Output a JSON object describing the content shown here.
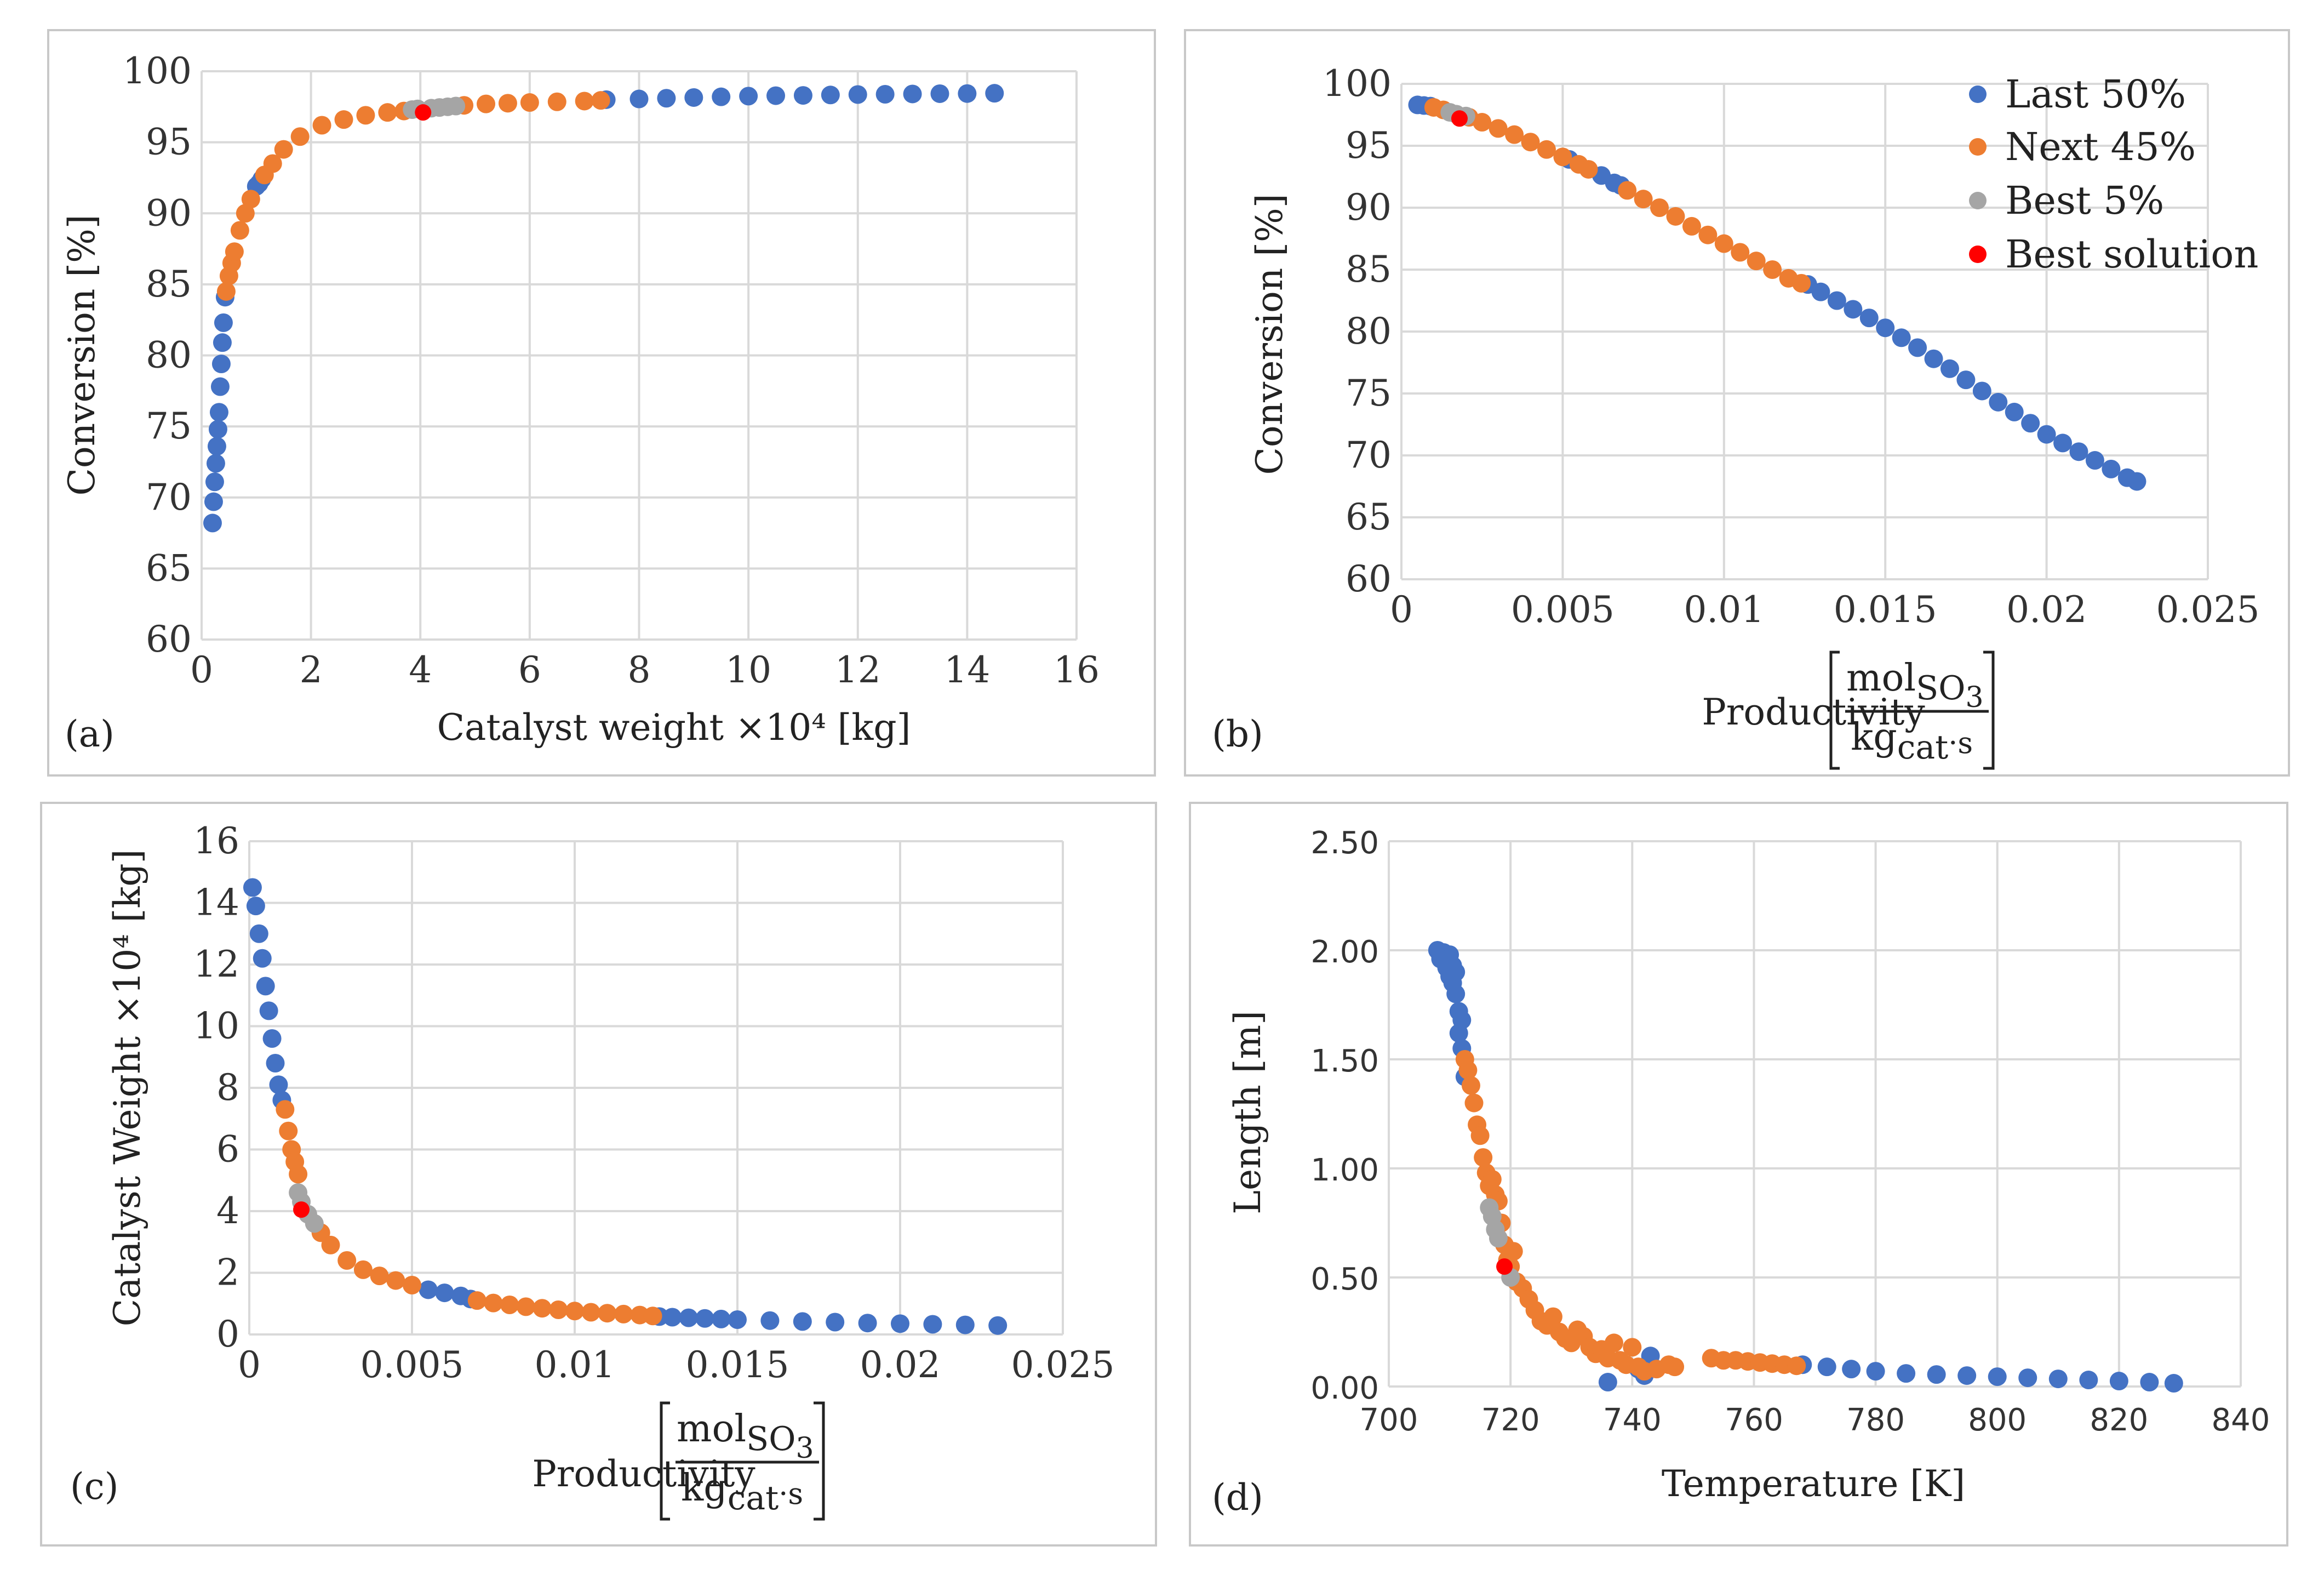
{
  "colors": {
    "last50": "#4472C4",
    "next45": "#ED7D31",
    "best5": "#A5A5A5",
    "best_solution": "#FF0000",
    "grid": "#D9D9D9"
  },
  "legend": {
    "last50": "Last 50%",
    "next45": "Next 45%",
    "best5": "Best 5%",
    "best_solution": "Best solution"
  },
  "productivity_unit": {
    "num_main": "mol",
    "num_sub": "SO",
    "num_subsub": "3",
    "den_main": "kg",
    "den_sub": "cat",
    "den_tail": "·s"
  },
  "chart_data": [
    {
      "id": "a",
      "type": "scatter",
      "panel_label": "(a)",
      "title": "",
      "xlabel": "Catalyst weight ×10⁴ [kg]",
      "ylabel": "Conversion [%]",
      "xlim": [
        0,
        16
      ],
      "ylim": [
        60,
        100
      ],
      "xticks": [
        "0",
        "2",
        "4",
        "6",
        "8",
        "10",
        "12",
        "14",
        "16"
      ],
      "yticks": [
        "60",
        "65",
        "70",
        "75",
        "80",
        "85",
        "90",
        "95",
        "100"
      ],
      "grid": true,
      "series": [
        {
          "name": "Last 50%",
          "key": "last50",
          "x": [
            0.2,
            0.22,
            0.24,
            0.26,
            0.28,
            0.3,
            0.32,
            0.34,
            0.36,
            0.38,
            0.4,
            0.43,
            1.0,
            1.05,
            1.1,
            7.4,
            8.0,
            8.5,
            9.0,
            9.5,
            10.0,
            10.5,
            11.0,
            11.5,
            12.0,
            12.5,
            13.0,
            13.5,
            14.0,
            14.5
          ],
          "y": [
            68.2,
            69.7,
            71.1,
            72.4,
            73.6,
            74.8,
            76.0,
            77.8,
            79.4,
            80.9,
            82.3,
            84.1,
            91.9,
            92.1,
            92.4,
            98.0,
            98.05,
            98.1,
            98.15,
            98.2,
            98.25,
            98.28,
            98.3,
            98.33,
            98.36,
            98.38,
            98.4,
            98.42,
            98.43,
            98.45
          ]
        },
        {
          "name": "Next 45%",
          "key": "next45",
          "x": [
            0.45,
            0.5,
            0.55,
            0.6,
            0.7,
            0.8,
            0.9,
            1.15,
            1.3,
            1.5,
            1.8,
            2.2,
            2.6,
            3.0,
            3.4,
            3.7,
            4.8,
            5.2,
            5.6,
            6.0,
            6.5,
            7.0,
            7.3
          ],
          "y": [
            84.5,
            85.6,
            86.5,
            87.3,
            88.8,
            90.0,
            91.0,
            92.7,
            93.5,
            94.5,
            95.4,
            96.2,
            96.6,
            96.9,
            97.1,
            97.2,
            97.6,
            97.7,
            97.75,
            97.8,
            97.85,
            97.9,
            97.95
          ]
        },
        {
          "name": "Best 5%",
          "key": "best5",
          "x": [
            3.85,
            3.95,
            4.2,
            4.35,
            4.5,
            4.65
          ],
          "y": [
            97.3,
            97.35,
            97.4,
            97.45,
            97.5,
            97.55
          ]
        },
        {
          "name": "Best solution",
          "key": "best_solution",
          "x": [
            4.05
          ],
          "y": [
            97.1
          ]
        }
      ]
    },
    {
      "id": "b",
      "type": "scatter",
      "panel_label": "(b)",
      "title": "",
      "xlabel": "Productivity",
      "ylabel": "Conversion [%]",
      "xlim": [
        0,
        0.025
      ],
      "ylim": [
        60,
        100
      ],
      "xticks": [
        "0",
        "0.005",
        "0.01",
        "0.015",
        "0.02",
        "0.025"
      ],
      "yticks": [
        "60",
        "65",
        "70",
        "75",
        "80",
        "85",
        "90",
        "95",
        "100"
      ],
      "grid": true,
      "legend_position": "top-right",
      "series": [
        {
          "name": "Last 50%",
          "key": "last50",
          "x": [
            0.0005,
            0.0007,
            0.0009,
            0.0052,
            0.0062,
            0.0066,
            0.0068,
            0.0126,
            0.013,
            0.0135,
            0.014,
            0.0145,
            0.015,
            0.0155,
            0.016,
            0.0165,
            0.017,
            0.0175,
            0.018,
            0.0185,
            0.019,
            0.0195,
            0.02,
            0.0205,
            0.021,
            0.0215,
            0.022,
            0.0225,
            0.0228
          ],
          "y": [
            98.3,
            98.25,
            98.2,
            93.9,
            92.6,
            92.0,
            91.8,
            83.8,
            83.2,
            82.5,
            81.8,
            81.1,
            80.3,
            79.5,
            78.7,
            77.8,
            77.0,
            76.1,
            75.2,
            74.3,
            73.5,
            72.6,
            71.7,
            71.0,
            70.3,
            69.6,
            68.9,
            68.2,
            67.9
          ]
        },
        {
          "name": "Next 45%",
          "key": "next45",
          "x": [
            0.001,
            0.0013,
            0.0021,
            0.0025,
            0.003,
            0.0035,
            0.004,
            0.0045,
            0.005,
            0.0055,
            0.0058,
            0.007,
            0.0075,
            0.008,
            0.0085,
            0.009,
            0.0095,
            0.01,
            0.0105,
            0.011,
            0.0115,
            0.012,
            0.0124
          ],
          "y": [
            98.1,
            97.9,
            97.3,
            96.9,
            96.4,
            95.9,
            95.3,
            94.7,
            94.1,
            93.5,
            93.1,
            91.4,
            90.7,
            90.0,
            89.3,
            88.5,
            87.8,
            87.1,
            86.4,
            85.7,
            85.0,
            84.3,
            83.9
          ]
        },
        {
          "name": "Best 5%",
          "key": "best5",
          "x": [
            0.0015,
            0.0017,
            0.002
          ],
          "y": [
            97.7,
            97.55,
            97.4
          ]
        },
        {
          "name": "Best solution",
          "key": "best_solution",
          "x": [
            0.0018
          ],
          "y": [
            97.2
          ]
        }
      ]
    },
    {
      "id": "c",
      "type": "scatter",
      "panel_label": "(c)",
      "title": "",
      "xlabel": "Productivity",
      "ylabel": "Catalyst Weight ×10⁴ [kg]",
      "xlim": [
        0,
        0.025
      ],
      "ylim": [
        0,
        16
      ],
      "xticks": [
        "0",
        "0.005",
        "0.01",
        "0.015",
        "0.02",
        "0.025"
      ],
      "yticks": [
        "0",
        "2",
        "4",
        "6",
        "8",
        "10",
        "12",
        "14",
        "16"
      ],
      "grid": true,
      "series": [
        {
          "name": "Last 50%",
          "key": "last50",
          "x": [
            0.0001,
            0.0002,
            0.0003,
            0.0004,
            0.0005,
            0.0006,
            0.0007,
            0.0008,
            0.0009,
            0.001,
            0.0055,
            0.006,
            0.0065,
            0.0068,
            0.0126,
            0.013,
            0.0135,
            0.014,
            0.0145,
            0.015,
            0.016,
            0.017,
            0.018,
            0.019,
            0.02,
            0.021,
            0.022,
            0.023
          ],
          "y": [
            14.5,
            13.9,
            13.0,
            12.2,
            11.3,
            10.5,
            9.6,
            8.8,
            8.1,
            7.6,
            1.45,
            1.35,
            1.25,
            1.15,
            0.58,
            0.56,
            0.54,
            0.52,
            0.5,
            0.48,
            0.45,
            0.42,
            0.4,
            0.37,
            0.35,
            0.33,
            0.31,
            0.29
          ]
        },
        {
          "name": "Next 45%",
          "key": "next45",
          "x": [
            0.0011,
            0.0012,
            0.0013,
            0.0014,
            0.0015,
            0.0022,
            0.0025,
            0.003,
            0.0035,
            0.004,
            0.0045,
            0.005,
            0.007,
            0.0075,
            0.008,
            0.0085,
            0.009,
            0.0095,
            0.01,
            0.0105,
            0.011,
            0.0115,
            0.012,
            0.0124
          ],
          "y": [
            7.3,
            6.6,
            6.0,
            5.6,
            5.2,
            3.3,
            2.9,
            2.4,
            2.1,
            1.9,
            1.75,
            1.6,
            1.1,
            1.02,
            0.96,
            0.9,
            0.85,
            0.8,
            0.76,
            0.72,
            0.69,
            0.66,
            0.63,
            0.6
          ]
        },
        {
          "name": "Best 5%",
          "key": "best5",
          "x": [
            0.0015,
            0.0016,
            0.0018,
            0.002
          ],
          "y": [
            4.6,
            4.3,
            3.9,
            3.6
          ]
        },
        {
          "name": "Best solution",
          "key": "best_solution",
          "x": [
            0.0016
          ],
          "y": [
            4.05
          ]
        }
      ]
    },
    {
      "id": "d",
      "type": "scatter",
      "panel_label": "(d)",
      "title": "",
      "xlabel": "Temperature [K]",
      "ylabel": "Length [m]",
      "xlim": [
        700,
        840
      ],
      "ylim": [
        0,
        2.5
      ],
      "xticks": [
        "700",
        "720",
        "740",
        "760",
        "780",
        "800",
        "820",
        "840"
      ],
      "yticks": [
        "0.00",
        "0.50",
        "1.00",
        "1.50",
        "2.00",
        "2.50"
      ],
      "grid": true,
      "series": [
        {
          "name": "Last 50%",
          "key": "last50",
          "x": [
            708,
            708.5,
            709,
            709.5,
            710,
            710.5,
            711,
            708.5,
            709.5,
            710,
            710.5,
            711,
            711.5,
            712,
            711.5,
            712,
            712.5,
            736,
            741,
            742,
            743,
            768,
            772,
            776,
            780,
            785,
            790,
            795,
            800,
            805,
            810,
            815,
            820,
            825,
            829
          ],
          "y": [
            2.0,
            1.97,
            1.99,
            1.95,
            1.98,
            1.93,
            1.9,
            1.96,
            1.92,
            1.88,
            1.85,
            1.8,
            1.72,
            1.68,
            1.62,
            1.55,
            1.42,
            0.02,
            0.08,
            0.05,
            0.14,
            0.1,
            0.09,
            0.08,
            0.07,
            0.06,
            0.055,
            0.05,
            0.045,
            0.04,
            0.035,
            0.03,
            0.025,
            0.02,
            0.015
          ]
        },
        {
          "name": "Next 45%",
          "key": "next45",
          "x": [
            712.5,
            713,
            713.5,
            714,
            714.5,
            715,
            715.5,
            716,
            716.5,
            717,
            717.5,
            718,
            718.5,
            719,
            719.5,
            720,
            720.5,
            721,
            722,
            723,
            724,
            725,
            726,
            727,
            728,
            729,
            730,
            731,
            732,
            733,
            734,
            735,
            736,
            737,
            738,
            739,
            740,
            741,
            742,
            744,
            746,
            747,
            753,
            755,
            757,
            759,
            761,
            763,
            765,
            767
          ],
          "y": [
            1.5,
            1.45,
            1.38,
            1.3,
            1.2,
            1.15,
            1.05,
            0.98,
            0.92,
            0.95,
            0.88,
            0.85,
            0.75,
            0.65,
            0.58,
            0.55,
            0.62,
            0.48,
            0.45,
            0.4,
            0.35,
            0.3,
            0.28,
            0.32,
            0.25,
            0.22,
            0.2,
            0.26,
            0.23,
            0.18,
            0.15,
            0.17,
            0.13,
            0.2,
            0.12,
            0.1,
            0.18,
            0.09,
            0.07,
            0.08,
            0.1,
            0.09,
            0.13,
            0.12,
            0.12,
            0.115,
            0.11,
            0.105,
            0.1,
            0.095
          ]
        },
        {
          "name": "Best 5%",
          "key": "best5",
          "x": [
            716.5,
            717,
            717.5,
            718,
            720
          ],
          "y": [
            0.82,
            0.78,
            0.72,
            0.68,
            0.5
          ]
        },
        {
          "name": "Best solution",
          "key": "best_solution",
          "x": [
            719
          ],
          "y": [
            0.55
          ]
        }
      ]
    }
  ]
}
